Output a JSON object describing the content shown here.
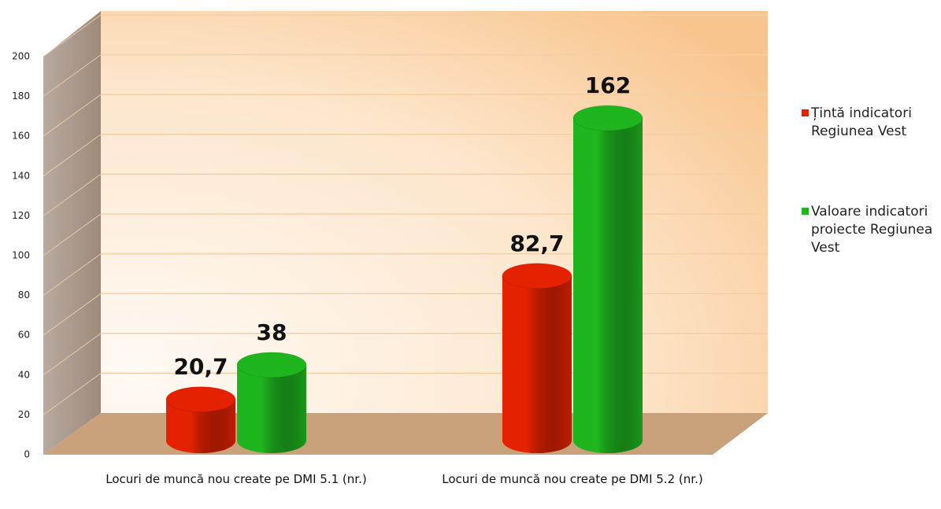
{
  "chart_data": {
    "type": "bar3d",
    "categories": [
      "Locuri de muncă nou create pe DMI 5.1 (nr.)",
      "Locuri de muncă nou create pe DMI 5.2 (nr.)"
    ],
    "series": [
      {
        "name": "Țintă indicatori Regiunea Vest",
        "color": "#e42200",
        "values": [
          20.7,
          82.7
        ],
        "value_labels": [
          "20,7",
          "82,7"
        ]
      },
      {
        "name": "Valoare indicatori proiecte Regiunea Vest",
        "color": "#1fb51f",
        "values": [
          38,
          162
        ]
      }
    ],
    "ylim": [
      0,
      200
    ],
    "yticks": [
      0,
      20,
      40,
      60,
      80,
      100,
      120,
      140,
      160,
      180,
      200
    ],
    "grid": true,
    "legend": "right"
  }
}
